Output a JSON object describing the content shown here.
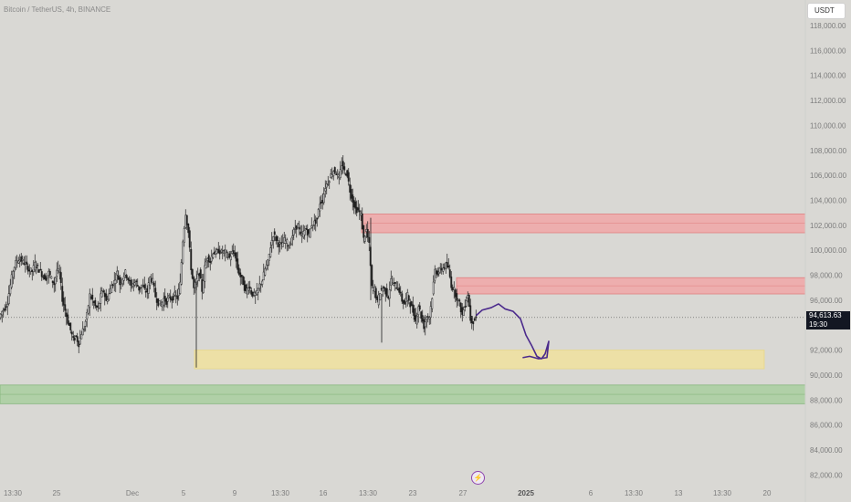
{
  "header": {
    "title": "Bitcoin / TetherUS, 4h, BINANCE"
  },
  "currency_button": {
    "label": "USDT"
  },
  "price_tag": {
    "price": "94,613.63",
    "countdown": "19:30"
  },
  "flash_icon": "lightning-bolt-icon",
  "colors": {
    "background": "#d9d8d4",
    "candle": "#1f1f1f",
    "supply_zone": "#f0a7a7",
    "demand_zone_yellow": "#f0e29e",
    "support_zone_green": "#a8cf9f",
    "drawing": "#4b2a8c"
  },
  "chart_data": {
    "type": "candlestick",
    "title": "Bitcoin / TetherUS, 4h, BINANCE",
    "ylim": [
      81000,
      120000
    ],
    "y_ticks": [
      "118,000.00",
      "116,000.00",
      "114,000.00",
      "112,000.00",
      "110,000.00",
      "108,000.00",
      "106,000.00",
      "104,000.00",
      "102,000.00",
      "100,000.00",
      "98,000.00",
      "96,000.00",
      "94,000.00",
      "92,000.00",
      "90,000.00",
      "88,000.00",
      "86,000.00",
      "84,000.00",
      "82,000.00"
    ],
    "x_ticks": [
      "13:30",
      "25",
      "Dec",
      "5",
      "9",
      "13:30",
      "16",
      "13:30",
      "23",
      "27",
      "2025",
      "6",
      "13:30",
      "13",
      "13:30",
      "20"
    ],
    "x_ticks_bold": [
      "2025"
    ],
    "current_price": 94613.63,
    "price_path": [
      [
        0,
        94600
      ],
      [
        3,
        95100
      ],
      [
        6,
        95400
      ],
      [
        9,
        95900
      ],
      [
        12,
        97200
      ],
      [
        15,
        98400
      ],
      [
        18,
        99000
      ],
      [
        21,
        99300
      ],
      [
        24,
        99200
      ],
      [
        27,
        99000
      ],
      [
        30,
        98700
      ],
      [
        33,
        98400
      ],
      [
        36,
        98300
      ],
      [
        39,
        98900
      ],
      [
        42,
        98600
      ],
      [
        45,
        98300
      ],
      [
        48,
        97900
      ],
      [
        51,
        97800
      ],
      [
        54,
        98200
      ],
      [
        57,
        97700
      ],
      [
        60,
        97300
      ],
      [
        63,
        98400
      ],
      [
        66,
        98200
      ],
      [
        69,
        96100
      ],
      [
        72,
        95200
      ],
      [
        75,
        94300
      ],
      [
        78,
        93600
      ],
      [
        81,
        92800
      ],
      [
        84,
        93100
      ],
      [
        87,
        92500
      ],
      [
        90,
        93400
      ],
      [
        93,
        93800
      ],
      [
        96,
        94800
      ],
      [
        99,
        96400
      ],
      [
        102,
        96000
      ],
      [
        105,
        95500
      ],
      [
        108,
        95300
      ],
      [
        111,
        96300
      ],
      [
        114,
        96800
      ],
      [
        117,
        95900
      ],
      [
        120,
        96500
      ],
      [
        123,
        97200
      ],
      [
        126,
        97500
      ],
      [
        129,
        98200
      ],
      [
        132,
        97300
      ],
      [
        135,
        97800
      ],
      [
        138,
        98200
      ],
      [
        141,
        97700
      ],
      [
        144,
        97100
      ],
      [
        147,
        97400
      ],
      [
        150,
        97400
      ],
      [
        153,
        96900
      ],
      [
        156,
        97200
      ],
      [
        159,
        96800
      ],
      [
        162,
        96700
      ],
      [
        165,
        97800
      ],
      [
        168,
        97500
      ],
      [
        171,
        96300
      ],
      [
        174,
        95800
      ],
      [
        177,
        95600
      ],
      [
        180,
        96100
      ],
      [
        183,
        95900
      ],
      [
        186,
        96200
      ],
      [
        189,
        96100
      ],
      [
        192,
        96400
      ],
      [
        195,
        96200
      ],
      [
        198,
        97300
      ],
      [
        201,
        100800
      ],
      [
        204,
        103000
      ],
      [
        207,
        101400
      ],
      [
        210,
        98600
      ],
      [
        213,
        96900
      ],
      [
        216,
        97600
      ],
      [
        219,
        98200
      ],
      [
        222,
        96800
      ],
      [
        225,
        98600
      ],
      [
        228,
        99500
      ],
      [
        231,
        99100
      ],
      [
        234,
        99900
      ],
      [
        237,
        99700
      ],
      [
        240,
        100000
      ],
      [
        243,
        99800
      ],
      [
        246,
        99900
      ],
      [
        249,
        99700
      ],
      [
        252,
        99400
      ],
      [
        255,
        99800
      ],
      [
        258,
        99700
      ],
      [
        261,
        98500
      ],
      [
        264,
        97900
      ],
      [
        267,
        97400
      ],
      [
        270,
        96600
      ],
      [
        273,
        97200
      ],
      [
        276,
        96600
      ],
      [
        279,
        96400
      ],
      [
        282,
        96500
      ],
      [
        285,
        97200
      ],
      [
        288,
        97600
      ],
      [
        291,
        98500
      ],
      [
        294,
        99000
      ],
      [
        297,
        100300
      ],
      [
        300,
        101300
      ],
      [
        303,
        100900
      ],
      [
        306,
        100500
      ],
      [
        309,
        100400
      ],
      [
        312,
        100800
      ],
      [
        315,
        100600
      ],
      [
        318,
        100300
      ],
      [
        321,
        101200
      ],
      [
        324,
        101800
      ],
      [
        327,
        102000
      ],
      [
        330,
        101100
      ],
      [
        333,
        101400
      ],
      [
        336,
        101700
      ],
      [
        339,
        101200
      ],
      [
        342,
        102100
      ],
      [
        345,
        102200
      ],
      [
        348,
        102500
      ],
      [
        351,
        103800
      ],
      [
        354,
        104000
      ],
      [
        357,
        105100
      ],
      [
        360,
        105500
      ],
      [
        363,
        106000
      ],
      [
        366,
        106400
      ],
      [
        369,
        106200
      ],
      [
        372,
        105700
      ],
      [
        375,
        106900
      ],
      [
        378,
        106300
      ],
      [
        381,
        106100
      ],
      [
        384,
        104800
      ],
      [
        387,
        104000
      ],
      [
        390,
        103300
      ],
      [
        393,
        103200
      ],
      [
        396,
        102800
      ],
      [
        399,
        100900
      ],
      [
        402,
        101600
      ],
      [
        405,
        100400
      ],
      [
        408,
        97000
      ],
      [
        411,
        96900
      ],
      [
        414,
        95800
      ],
      [
        417,
        96700
      ],
      [
        420,
        97000
      ],
      [
        423,
        96700
      ],
      [
        426,
        96300
      ],
      [
        429,
        97600
      ],
      [
        432,
        97200
      ],
      [
        435,
        97100
      ],
      [
        438,
        96800
      ],
      [
        441,
        96000
      ],
      [
        444,
        95700
      ],
      [
        447,
        96400
      ],
      [
        450,
        95700
      ],
      [
        453,
        95100
      ],
      [
        456,
        94300
      ],
      [
        459,
        95600
      ],
      [
        462,
        94700
      ],
      [
        465,
        93900
      ],
      [
        468,
        94700
      ],
      [
        471,
        94700
      ],
      [
        474,
        96300
      ],
      [
        477,
        98400
      ],
      [
        480,
        98200
      ],
      [
        483,
        98400
      ],
      [
        486,
        98600
      ],
      [
        489,
        98800
      ],
      [
        492,
        98500
      ],
      [
        495,
        97200
      ],
      [
        498,
        96800
      ],
      [
        501,
        96200
      ],
      [
        504,
        95700
      ],
      [
        507,
        94800
      ],
      [
        510,
        95700
      ],
      [
        513,
        96500
      ],
      [
        516,
        94500
      ],
      [
        519,
        94300
      ],
      [
        522,
        94600
      ]
    ],
    "zones": [
      {
        "kind": "supply",
        "y0": 101400,
        "y1": 102900,
        "x0": 396,
        "x1": 882
      },
      {
        "kind": "supply",
        "y0": 96500,
        "y1": 97800,
        "x0": 500,
        "x1": 882
      },
      {
        "kind": "demand",
        "y0": 90500,
        "y1": 92000,
        "x0": 213,
        "x1": 837
      },
      {
        "kind": "support",
        "y0": 87700,
        "y1": 89200,
        "x0": 0,
        "x1": 882
      }
    ],
    "projection_path": [
      [
        522,
        94800
      ],
      [
        528,
        95200
      ],
      [
        538,
        95400
      ],
      [
        546,
        95700
      ],
      [
        553,
        95300
      ],
      [
        562,
        95100
      ],
      [
        570,
        94500
      ],
      [
        576,
        93200
      ],
      [
        582,
        92400
      ],
      [
        588,
        91500
      ],
      [
        593,
        91300
      ],
      [
        597,
        91700
      ],
      [
        601,
        92700
      ],
      [
        599,
        91400
      ],
      [
        590,
        91300
      ],
      [
        580,
        91500
      ],
      [
        573,
        91400
      ]
    ]
  }
}
